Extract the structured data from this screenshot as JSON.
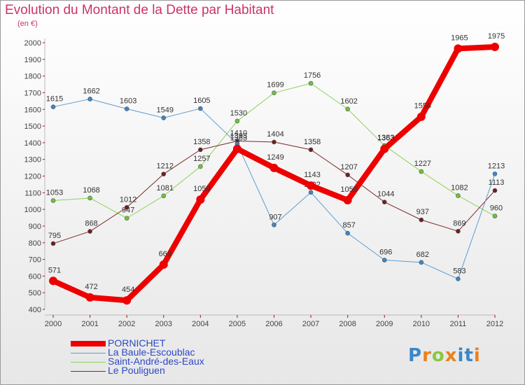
{
  "title": "Evolution du Montant de la Dette par Habitant",
  "subtitle": "(en €)",
  "logo": {
    "text": "Proxiti",
    "letters": [
      "P",
      "r",
      "o",
      "x",
      "i",
      "t",
      "i"
    ],
    "colors": [
      "#3a87c8",
      "#e8821e",
      "#8cc63f",
      "#e8821e",
      "#3a87c8",
      "#3a87c8",
      "#e8821e"
    ]
  },
  "chart_data": {
    "type": "line",
    "x": [
      2000,
      2001,
      2002,
      2003,
      2004,
      2005,
      2006,
      2007,
      2008,
      2009,
      2010,
      2011,
      2012
    ],
    "ylim": [
      400,
      2000
    ],
    "yticks": [
      400,
      500,
      600,
      700,
      800,
      900,
      1000,
      1100,
      1200,
      1300,
      1400,
      1500,
      1600,
      1700,
      1800,
      1900,
      2000
    ],
    "grid": false,
    "legend_position": "bottom-left",
    "series": [
      {
        "name": "Saint-André-des-Eaux",
        "color": "#8cd35a",
        "marker": "#6cc43c",
        "width": 1,
        "values": [
          1053,
          1068,
          947,
          1081,
          1257,
          1530,
          1699,
          1756,
          1602,
          1383,
          1227,
          1082,
          960
        ]
      },
      {
        "name": "Le Pouliguen",
        "color": "#7a2a2a",
        "marker": "#6b1f1f",
        "width": 1,
        "values": [
          795,
          868,
          1012,
          1212,
          1358,
          1410,
          1404,
          1358,
          1207,
          1044,
          937,
          869,
          1113
        ]
      },
      {
        "name": "La Baule-Escoublac",
        "color": "#5e9ccf",
        "marker": "#3d86c6",
        "width": 1,
        "values": [
          1615,
          1662,
          1603,
          1549,
          1605,
          1393,
          907,
          1102,
          857,
          696,
          682,
          583,
          1213
        ]
      },
      {
        "name": "PORNICHET",
        "color": "#ee0000",
        "marker": "#ee0000",
        "width": 8,
        "values": [
          571,
          472,
          454,
          669,
          1059,
          1363,
          1249,
          1143,
          1055,
          1363,
          1556,
          1965,
          1975
        ]
      }
    ]
  },
  "legend": [
    {
      "name": "PORNICHET",
      "color": "#ee0000",
      "width": 8
    },
    {
      "name": "La Baule-Escoublac",
      "color": "#5e9ccf",
      "width": 1
    },
    {
      "name": "Saint-André-des-Eaux",
      "color": "#8cd35a",
      "width": 1
    },
    {
      "name": "Le Pouliguen",
      "color": "#7a2a2a",
      "width": 1
    }
  ]
}
